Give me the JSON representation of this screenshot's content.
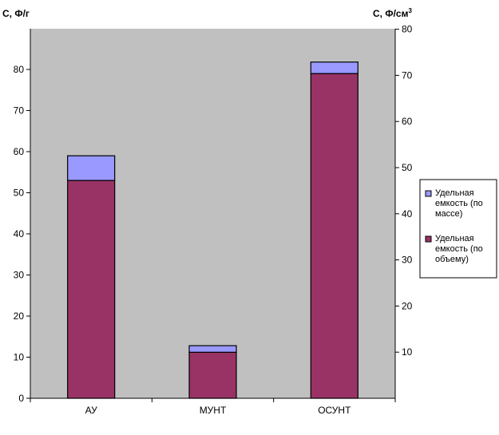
{
  "chart_data": {
    "type": "bar",
    "stacked": true,
    "categories": [
      "АУ",
      "МУНТ",
      "ОСУНТ"
    ],
    "series": [
      {
        "name": "Удельная емкость (по объему)",
        "values": [
          53,
          11.2,
          79
        ],
        "color": "#993366"
      },
      {
        "name": "Удельная емкость (по массе)",
        "values": [
          6,
          1.6,
          2.8
        ],
        "color": "#9999ff"
      }
    ],
    "ylabel_left": "С, Ф/г",
    "ylabel_right_base": "С, Ф/см",
    "ylabel_right_sup": "3",
    "ylim_left": [
      0,
      90
    ],
    "yticks_left": [
      "0",
      "10",
      "20",
      "30",
      "40",
      "50",
      "60",
      "70",
      "80"
    ],
    "ylim_right": [
      0,
      80
    ],
    "yticks_right": [
      "10",
      "20",
      "30",
      "40",
      "50",
      "60",
      "70",
      "80"
    ],
    "grid": false,
    "plot_background": "#c0c0c0",
    "legend_position": "right",
    "legend": [
      {
        "lines": [
          "Удельная",
          "емкость (по",
          "массе)"
        ],
        "color": "#9999ff"
      },
      {
        "lines": [
          "Удельная",
          "емкость (по",
          "объему)"
        ],
        "color": "#993366"
      }
    ]
  }
}
